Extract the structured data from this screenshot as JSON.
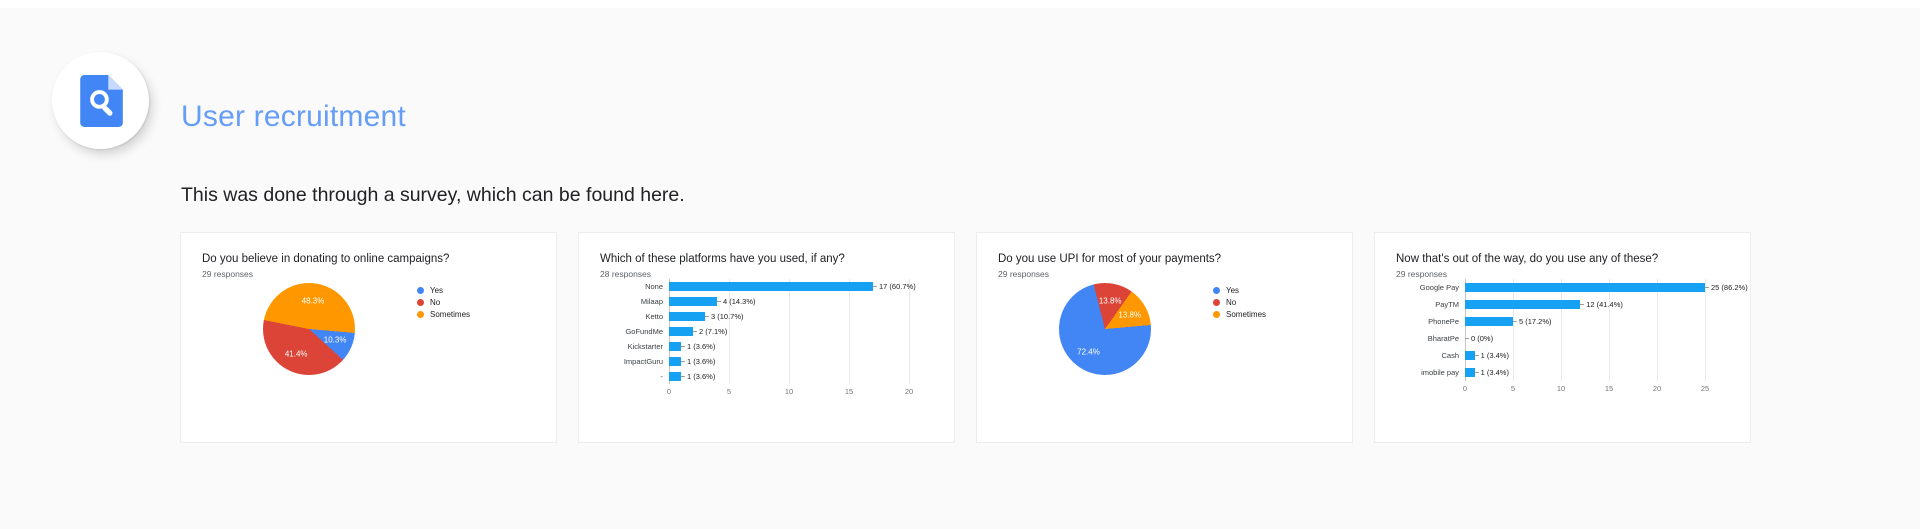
{
  "page": {
    "title": "User recruitment",
    "intro": "This was done through a survey, which can be found here.",
    "background": "#fafafa"
  },
  "icon": {
    "name": "document-search-icon",
    "glyph_color": "#4285f4",
    "fold_color": "#c8dafc",
    "circle_color": "#ffffff"
  },
  "colors": {
    "accent_blue": "#669df6",
    "body_text": "#202124",
    "bar_blue": "#16a1f2",
    "pie_blue": "#4285f4",
    "pie_red": "#db4437",
    "pie_orange": "#ff9800",
    "grid": "#eaeaea",
    "axis_text": "#757575"
  },
  "chart_data": [
    {
      "type": "pie",
      "title": "Do you believe in donating to online campaigns?",
      "subtitle": "29 responses",
      "categories": [
        "Yes",
        "No",
        "Sometimes"
      ],
      "values": [
        3,
        12,
        14
      ],
      "slice_labels": [
        "10.3%",
        "41.4%",
        "48.3%"
      ],
      "colors": [
        "#4285f4",
        "#db4437",
        "#ff9800"
      ],
      "rotation": 95,
      "legend_position": "right"
    },
    {
      "type": "bar",
      "title": "Which of these platforms have you used, if any?",
      "subtitle": "28 responses",
      "categories": [
        "None",
        "Milaap",
        "Ketto",
        "GoFundMe",
        "Kickstarter",
        "ImpactGuru",
        "-"
      ],
      "values": [
        17,
        4,
        3,
        2,
        1,
        1,
        1
      ],
      "value_labels": [
        "17 (60.7%)",
        "4 (14.3%)",
        "3 (10.7%)",
        "2 (7.1%)",
        "1 (3.6%)",
        "1 (3.6%)",
        "1 (3.6%)"
      ],
      "xlim": [
        0,
        20
      ],
      "xticks": [
        0,
        5,
        10,
        15,
        20
      ],
      "bar_color": "#16a1f2",
      "grid": true
    },
    {
      "type": "pie",
      "title": "Do you use UPI for most of your payments?",
      "subtitle": "29 responses",
      "categories": [
        "Yes",
        "No",
        "Sometimes"
      ],
      "values": [
        21,
        4,
        4
      ],
      "slice_labels": [
        "72.4%",
        "13.8%",
        "13.8%"
      ],
      "colors": [
        "#4285f4",
        "#db4437",
        "#ff9800"
      ],
      "rotation": 85,
      "legend_position": "right"
    },
    {
      "type": "bar",
      "title": "Now that's out of the way, do you use any of these?",
      "subtitle": "29 responses",
      "categories": [
        "Google Pay",
        "PayTM",
        "PhonePe",
        "BharatPe",
        "Cash",
        "imobile pay"
      ],
      "values": [
        25,
        12,
        5,
        0,
        1,
        1
      ],
      "value_labels": [
        "25 (86.2%)",
        "12 (41.4%)",
        "5 (17.2%)",
        "0 (0%)",
        "1 (3.4%)",
        "1 (3.4%)"
      ],
      "xlim": [
        0,
        25
      ],
      "xticks": [
        0,
        5,
        10,
        15,
        20,
        25
      ],
      "bar_color": "#16a1f2",
      "grid": true
    }
  ]
}
